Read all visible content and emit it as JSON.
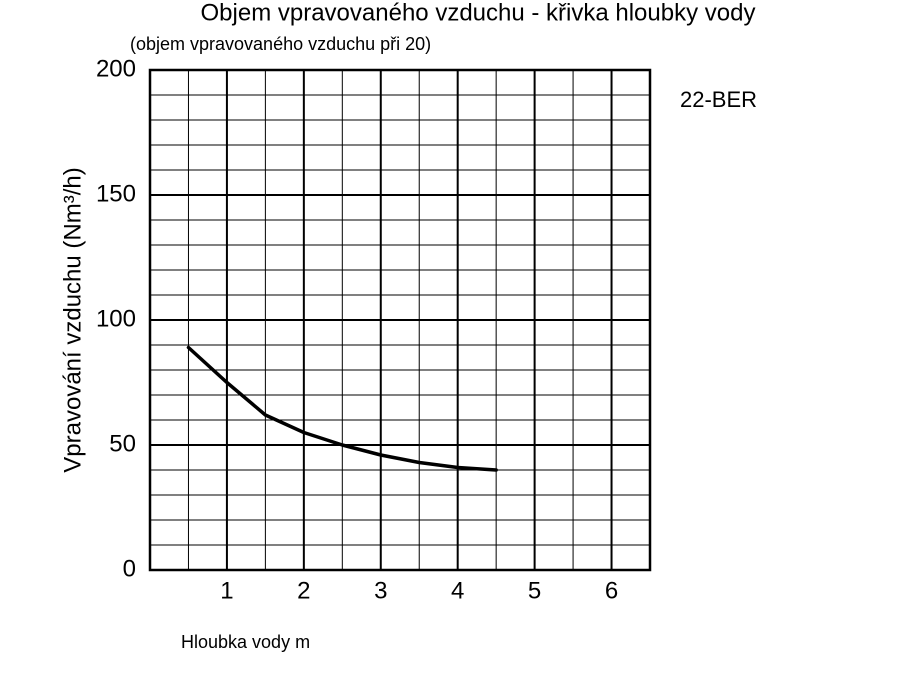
{
  "chart_data": {
    "type": "line",
    "title": "Objem vpravovaného vzduchu - křivka hloubky vody",
    "subtitle": "(objem vpravovaného vzduchu při 20)",
    "x_label": "Hloubka vody m",
    "y_label": "Vpravování vzduchu (Nm³/h)",
    "annotation": "22-BER",
    "x": [
      0.5,
      1,
      1.5,
      2,
      2.5,
      3,
      3.5,
      4,
      4.5
    ],
    "series": [
      {
        "color": "#000000",
        "values": [
          89,
          75,
          62,
          55,
          50,
          46,
          43,
          41,
          40
        ]
      }
    ],
    "xlim": [
      0,
      6.5
    ],
    "ylim": [
      0,
      200
    ],
    "xticks": [
      1,
      2,
      3,
      4,
      5,
      6
    ],
    "yticks": [
      0,
      50,
      100,
      150,
      200
    ],
    "grid": true
  }
}
